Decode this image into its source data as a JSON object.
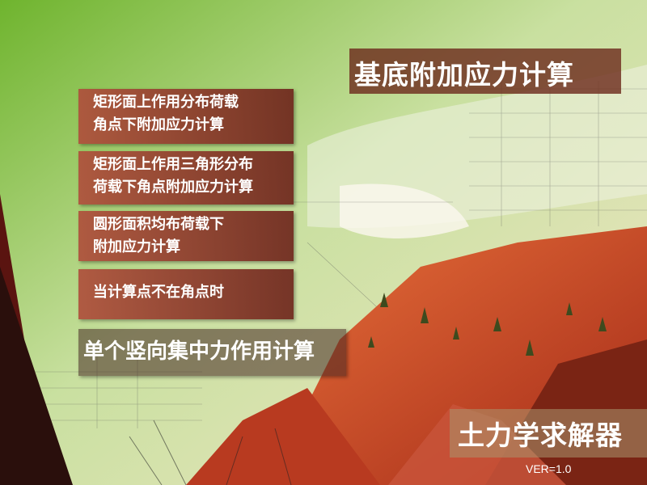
{
  "header": {
    "title": "基底附加应力计算"
  },
  "menu": {
    "rect_uniform": {
      "line1": "矩形面上作用分布荷载",
      "line2": "角点下附加应力计算"
    },
    "rect_triangle": {
      "line1": "矩形面上作用三角形分布",
      "line2": "荷载下角点附加应力计算"
    },
    "circle": {
      "line1": "圆形面积均布荷载下",
      "line2": "附加应力计算"
    },
    "not_corner": {
      "label": "当计算点不在角点时"
    },
    "point_load": {
      "label": "单个竖向集中力作用计算"
    }
  },
  "app": {
    "name": "土力学求解器",
    "version": "VER=1.0"
  }
}
